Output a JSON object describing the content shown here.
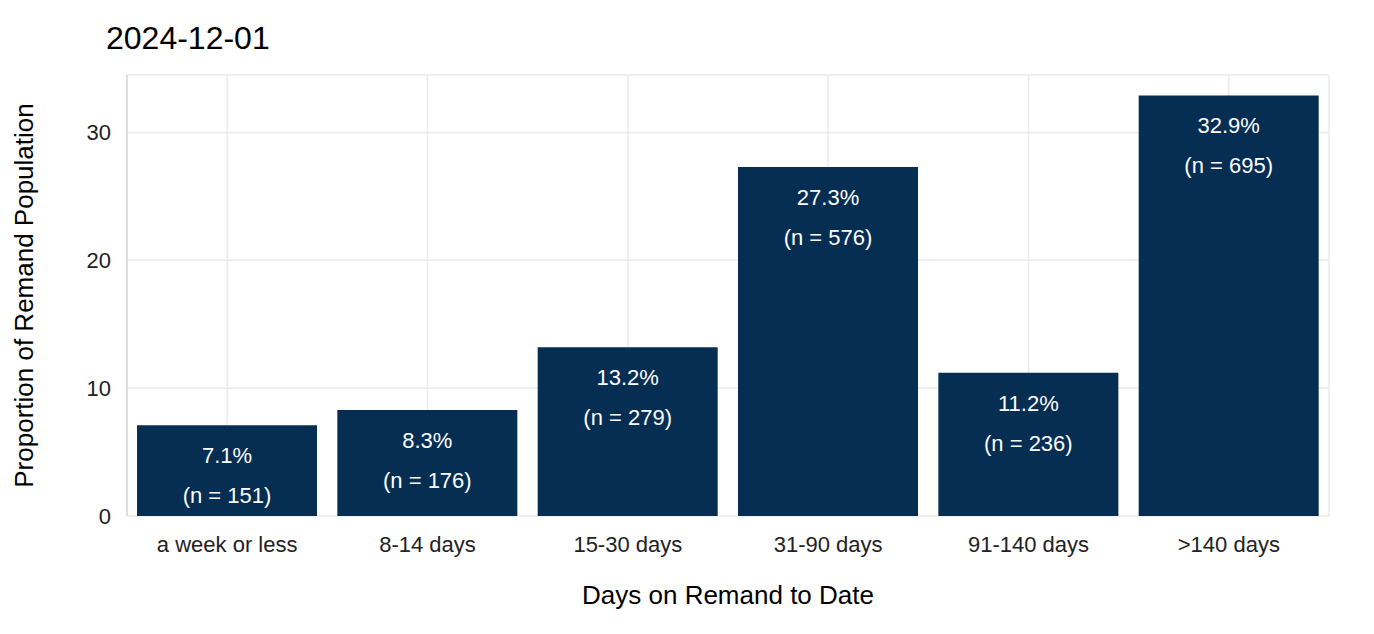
{
  "chart_data": {
    "type": "bar",
    "title": "2024-12-01",
    "x_label": "Days on Remand to Date",
    "y_label": "Proportion of Remand Population",
    "categories": [
      "a week or less",
      "8-14 days",
      "15-30 days",
      "31-90 days",
      "91-140 days",
      ">140 days"
    ],
    "values": [
      7.1,
      8.3,
      13.2,
      27.3,
      11.2,
      32.9
    ],
    "value_labels": [
      "7.1%\n(n = 151)",
      "8.3%\n(n = 176)",
      "13.2%\n(n = 279)",
      "27.3%\n(n = 576)",
      "11.2%\n(n = 236)",
      "32.9%\n(n = 695)"
    ],
    "color": "#062d52",
    "ylim": [
      0,
      34.5
    ],
    "yticks": [
      0,
      10,
      20,
      30
    ],
    "grid": true,
    "data_labels": true
  }
}
